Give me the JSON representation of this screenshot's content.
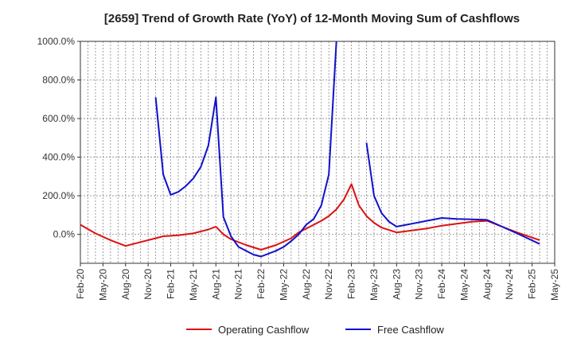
{
  "chart_data": {
    "type": "line",
    "title": "[2659]  Trend of Growth Rate (YoY) of 12-Month Moving Sum of Cashflows",
    "xlabel": "",
    "ylabel": "",
    "ylim": [
      -150,
      1000
    ],
    "yticks": [
      0,
      200,
      400,
      600,
      800,
      1000
    ],
    "ytick_labels": [
      "0.0%",
      "200.0%",
      "400.0%",
      "600.0%",
      "800.0%",
      "1000.0%"
    ],
    "xrange": [
      "Feb-20",
      "May-25"
    ],
    "xtick_labels": [
      "Feb-20",
      "May-20",
      "Aug-20",
      "Nov-20",
      "Feb-21",
      "May-21",
      "Aug-21",
      "Nov-21",
      "Feb-22",
      "May-22",
      "Aug-22",
      "Nov-22",
      "Feb-23",
      "May-23",
      "Aug-23",
      "Nov-23",
      "Feb-24",
      "May-24",
      "Aug-24",
      "Nov-24",
      "Feb-25",
      "May-25"
    ],
    "grid": true,
    "legend_position": "bottom",
    "series": [
      {
        "name": "Operating Cashflow",
        "color": "#dd1111",
        "points": [
          [
            "Feb-20",
            50
          ],
          [
            "Apr-20",
            5
          ],
          [
            "Jun-20",
            -30
          ],
          [
            "Aug-20",
            -60
          ],
          [
            "Oct-20",
            -40
          ],
          [
            "Dec-20",
            -20
          ],
          [
            "Jan-21",
            -10
          ],
          [
            "Mar-21",
            -5
          ],
          [
            "May-21",
            5
          ],
          [
            "Jul-21",
            25
          ],
          [
            "Aug-21",
            40
          ],
          [
            "Sep-21",
            0
          ],
          [
            "Oct-21",
            -25
          ],
          [
            "Dec-21",
            -55
          ],
          [
            "Feb-22",
            -80
          ],
          [
            "Apr-22",
            -55
          ],
          [
            "Jun-22",
            -20
          ],
          [
            "Jul-22",
            10
          ],
          [
            "Sep-22",
            50
          ],
          [
            "Oct-22",
            70
          ],
          [
            "Nov-22",
            95
          ],
          [
            "Dec-22",
            130
          ],
          [
            "Jan-23",
            180
          ],
          [
            "Feb-23",
            260
          ],
          [
            "Mar-23",
            150
          ],
          [
            "Apr-23",
            95
          ],
          [
            "May-23",
            60
          ],
          [
            "Jun-23",
            35
          ],
          [
            "Aug-23",
            10
          ],
          [
            "Oct-23",
            20
          ],
          [
            "Dec-23",
            30
          ],
          [
            "Feb-24",
            45
          ],
          [
            "Apr-24",
            55
          ],
          [
            "Jun-24",
            65
          ],
          [
            "Aug-24",
            70
          ],
          [
            "Oct-24",
            40
          ],
          [
            "Dec-24",
            10
          ],
          [
            "Mar-25",
            -30
          ]
        ]
      },
      {
        "name": "Free Cashflow",
        "color": "#1111cc",
        "points": [
          [
            "Dec-20",
            710
          ],
          [
            "Jan-21",
            310
          ],
          [
            "Feb-21",
            205
          ],
          [
            "Mar-21",
            220
          ],
          [
            "Apr-21",
            250
          ],
          [
            "May-21",
            290
          ],
          [
            "Jun-21",
            350
          ],
          [
            "Jul-21",
            460
          ],
          [
            "Aug-21",
            710
          ],
          [
            "Sep-21",
            90
          ],
          [
            "Oct-21",
            -10
          ],
          [
            "Nov-21",
            -65
          ],
          [
            "Jan-22",
            -105
          ],
          [
            "Feb-22",
            -115
          ],
          [
            "Apr-22",
            -85
          ],
          [
            "May-22",
            -65
          ],
          [
            "Jun-22",
            -35
          ],
          [
            "Jul-22",
            0
          ],
          [
            "Aug-22",
            50
          ],
          [
            "Sep-22",
            80
          ],
          [
            "Oct-22",
            150
          ],
          [
            "Nov-22",
            310
          ],
          [
            "Dec-22",
            1000
          ]
        ]
      },
      {
        "name": "Free Cashflow",
        "color": "#1111cc",
        "points": [
          [
            "Apr-23",
            475
          ],
          [
            "May-23",
            200
          ],
          [
            "Jun-23",
            110
          ],
          [
            "Jul-23",
            65
          ],
          [
            "Aug-23",
            40
          ],
          [
            "Oct-23",
            55
          ],
          [
            "Dec-23",
            70
          ],
          [
            "Feb-24",
            85
          ],
          [
            "Apr-24",
            80
          ],
          [
            "Jun-24",
            78
          ],
          [
            "Aug-24",
            75
          ],
          [
            "Oct-24",
            40
          ],
          [
            "Dec-24",
            5
          ],
          [
            "Mar-25",
            -50
          ]
        ]
      }
    ],
    "legend": [
      {
        "name": "Operating Cashflow",
        "color": "#dd1111"
      },
      {
        "name": "Free Cashflow",
        "color": "#1111cc"
      }
    ]
  }
}
